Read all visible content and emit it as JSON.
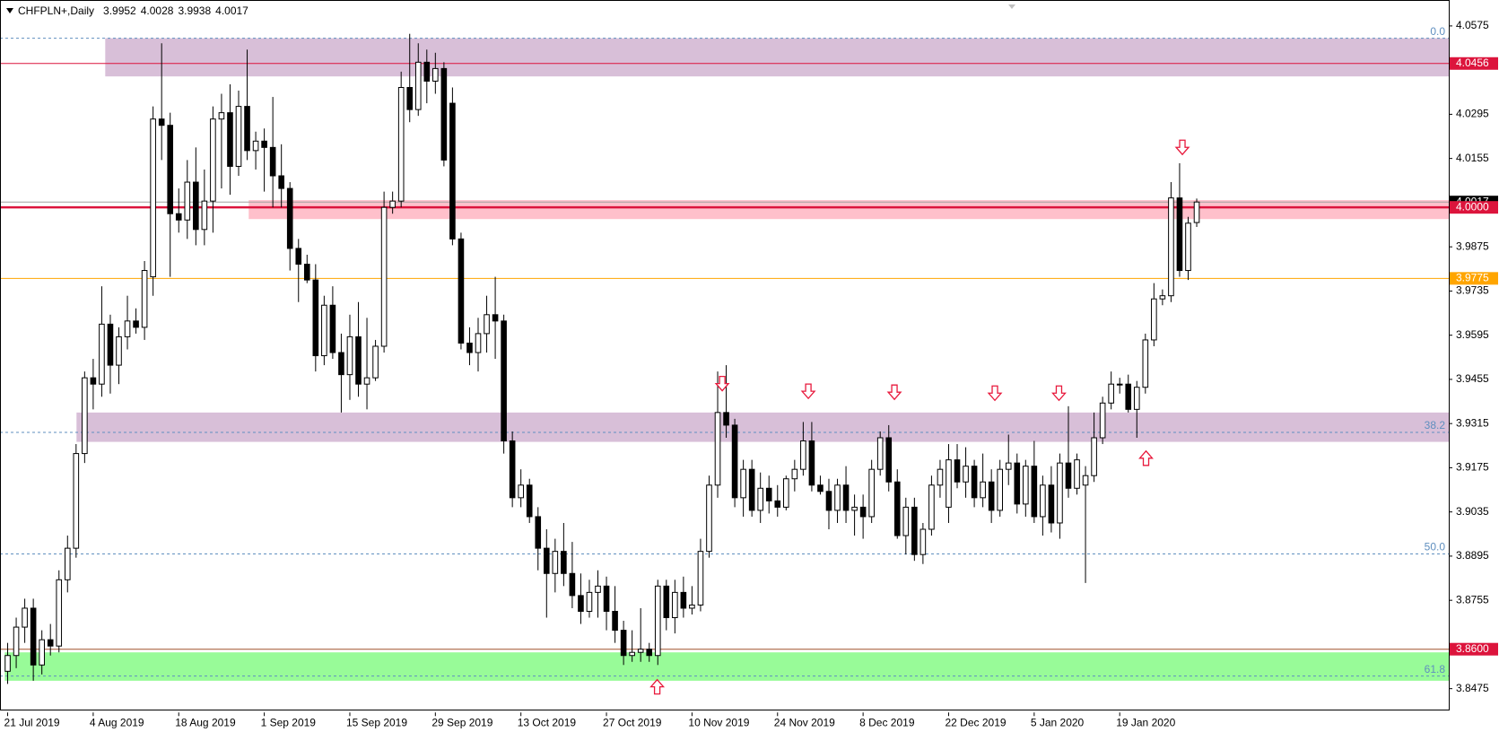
{
  "chart_data": {
    "type": "candlestick",
    "symbol": "CHFPLN+,Daily",
    "ylim": [
      3.8408,
      4.0642
    ],
    "yticks": [
      4.0575,
      4.0295,
      4.0155,
      3.9875,
      3.9735,
      3.9595,
      3.9455,
      3.9315,
      3.9175,
      3.9035,
      3.8895,
      3.8755,
      3.8475
    ],
    "up_color": "#ffffff",
    "down_color": "#000000",
    "categories": [
      "21 Jul 2019",
      null,
      null,
      null,
      null,
      null,
      null,
      null,
      null,
      null,
      "4 Aug 2019",
      null,
      null,
      null,
      null,
      null,
      null,
      null,
      null,
      null,
      "18 Aug 2019",
      null,
      null,
      null,
      null,
      null,
      null,
      null,
      null,
      null,
      "1 Sep 2019",
      null,
      null,
      null,
      null,
      null,
      null,
      null,
      null,
      null,
      "15 Sep 2019",
      null,
      null,
      null,
      null,
      null,
      null,
      null,
      null,
      null,
      "29 Sep 2019",
      null,
      null,
      null,
      null,
      null,
      null,
      null,
      null,
      null,
      "13 Oct 2019",
      null,
      null,
      null,
      null,
      null,
      null,
      null,
      null,
      null,
      "27 Oct 2019",
      null,
      null,
      null,
      null,
      null,
      null,
      null,
      null,
      null,
      "10 Nov 2019",
      null,
      null,
      null,
      null,
      null,
      null,
      null,
      null,
      null,
      "24 Nov 2019",
      null,
      null,
      null,
      null,
      null,
      null,
      null,
      null,
      null,
      "8 Dec 2019",
      null,
      null,
      null,
      null,
      null,
      null,
      null,
      null,
      null,
      "22 Dec 2019",
      null,
      null,
      null,
      null,
      null,
      null,
      null,
      null,
      null,
      "5 Jan 2020",
      null,
      null,
      null,
      null,
      null,
      null,
      null,
      null,
      null,
      "19 Jan 2020",
      null,
      null,
      null,
      null,
      null,
      null,
      null,
      null,
      null
    ],
    "ohlc": [
      [
        3.853,
        3.862,
        3.849,
        3.858
      ],
      [
        3.858,
        3.87,
        3.854,
        3.867
      ],
      [
        3.867,
        3.876,
        3.862,
        3.873
      ],
      [
        3.873,
        3.876,
        3.85,
        3.855
      ],
      [
        3.855,
        3.866,
        3.852,
        3.863
      ],
      [
        3.863,
        3.868,
        3.858,
        3.861
      ],
      [
        3.861,
        3.885,
        3.859,
        3.882
      ],
      [
        3.882,
        3.896,
        3.878,
        3.892
      ],
      [
        3.892,
        3.925,
        3.889,
        3.922
      ],
      [
        3.922,
        3.948,
        3.919,
        3.946
      ],
      [
        3.946,
        3.952,
        3.936,
        3.944
      ],
      [
        3.944,
        3.975,
        3.94,
        3.963
      ],
      [
        3.963,
        3.966,
        3.941,
        3.95
      ],
      [
        3.95,
        3.962,
        3.944,
        3.959
      ],
      [
        3.959,
        3.972,
        3.955,
        3.964
      ],
      [
        3.964,
        3.968,
        3.96,
        3.962
      ],
      [
        3.962,
        3.983,
        3.958,
        3.98
      ],
      [
        3.978,
        4.032,
        3.972,
        4.028
      ],
      [
        4.028,
        4.052,
        4.015,
        4.026
      ],
      [
        4.026,
        4.03,
        3.978,
        3.998
      ],
      [
        3.998,
        4.006,
        3.992,
        3.996
      ],
      [
        3.996,
        4.015,
        3.99,
        4.008
      ],
      [
        4.008,
        4.019,
        3.988,
        3.993
      ],
      [
        3.993,
        4.012,
        3.988,
        4.002
      ],
      [
        4.002,
        4.032,
        3.992,
        4.028
      ],
      [
        4.028,
        4.036,
        4.006,
        4.03
      ],
      [
        4.03,
        4.039,
        4.004,
        4.013
      ],
      [
        4.013,
        4.037,
        4.01,
        4.032
      ],
      [
        4.032,
        4.05,
        4.015,
        4.018
      ],
      [
        4.018,
        4.024,
        4.012,
        4.021
      ],
      [
        4.021,
        4.025,
        4.005,
        4.019
      ],
      [
        4.019,
        4.035,
        4.0,
        4.01
      ],
      [
        4.01,
        4.02,
        4.0,
        4.006
      ],
      [
        4.006,
        4.008,
        3.98,
        3.987
      ],
      [
        3.987,
        3.99,
        3.97,
        3.982
      ],
      [
        3.982,
        3.985,
        3.976,
        3.977
      ],
      [
        3.977,
        3.982,
        3.948,
        3.953
      ],
      [
        3.953,
        3.972,
        3.95,
        3.969
      ],
      [
        3.969,
        3.975,
        3.952,
        3.954
      ],
      [
        3.954,
        3.96,
        3.935,
        3.947
      ],
      [
        3.947,
        3.966,
        3.939,
        3.959
      ],
      [
        3.959,
        3.97,
        3.94,
        3.944
      ],
      [
        3.944,
        3.965,
        3.936,
        3.946
      ],
      [
        3.946,
        3.958,
        3.945,
        3.956
      ],
      [
        3.956,
        4.005,
        3.954,
        4.0
      ],
      [
        4.0,
        4.005,
        3.998,
        4.002
      ],
      [
        4.002,
        4.043,
        4.0,
        4.038
      ],
      [
        4.038,
        4.055,
        4.027,
        4.031
      ],
      [
        4.031,
        4.052,
        4.029,
        4.046
      ],
      [
        4.046,
        4.05,
        4.033,
        4.04
      ],
      [
        4.04,
        4.049,
        4.036,
        4.044
      ],
      [
        4.044,
        4.046,
        4.013,
        4.015
      ],
      [
        4.033,
        4.038,
        3.988,
        3.99
      ],
      [
        3.99,
        3.992,
        3.955,
        3.957
      ],
      [
        3.957,
        3.962,
        3.95,
        3.954
      ],
      [
        3.954,
        3.965,
        3.948,
        3.96
      ],
      [
        3.96,
        3.972,
        3.954,
        3.966
      ],
      [
        3.966,
        3.978,
        3.952,
        3.964
      ],
      [
        3.964,
        3.966,
        3.922,
        3.926
      ],
      [
        3.926,
        3.929,
        3.905,
        3.908
      ],
      [
        3.908,
        3.917,
        3.905,
        3.912
      ],
      [
        3.912,
        3.914,
        3.9,
        3.902
      ],
      [
        3.902,
        3.905,
        3.885,
        3.892
      ],
      [
        3.892,
        3.898,
        3.87,
        3.884
      ],
      [
        3.884,
        3.895,
        3.878,
        3.891
      ],
      [
        3.891,
        3.9,
        3.88,
        3.884
      ],
      [
        3.884,
        3.894,
        3.873,
        3.877
      ],
      [
        3.877,
        3.884,
        3.868,
        3.872
      ],
      [
        3.872,
        3.882,
        3.87,
        3.878
      ],
      [
        3.878,
        3.885,
        3.87,
        3.88
      ],
      [
        3.88,
        3.883,
        3.866,
        3.872
      ],
      [
        3.872,
        3.88,
        3.862,
        3.866
      ],
      [
        3.866,
        3.869,
        3.855,
        3.858
      ],
      [
        3.858,
        3.866,
        3.856,
        3.859
      ],
      [
        3.859,
        3.873,
        3.856,
        3.86
      ],
      [
        3.86,
        3.862,
        3.856,
        3.858
      ],
      [
        3.858,
        3.882,
        3.855,
        3.88
      ],
      [
        3.88,
        3.882,
        3.866,
        3.87
      ],
      [
        3.87,
        3.882,
        3.865,
        3.878
      ],
      [
        3.878,
        3.883,
        3.87,
        3.873
      ],
      [
        3.873,
        3.88,
        3.871,
        3.874
      ],
      [
        3.874,
        3.895,
        3.872,
        3.891
      ],
      [
        3.891,
        3.915,
        3.889,
        3.912
      ],
      [
        3.912,
        3.948,
        3.908,
        3.935
      ],
      [
        3.935,
        3.95,
        3.927,
        3.931
      ],
      [
        3.931,
        3.933,
        3.905,
        3.908
      ],
      [
        3.908,
        3.92,
        3.902,
        3.917
      ],
      [
        3.917,
        3.92,
        3.902,
        3.904
      ],
      [
        3.904,
        3.916,
        3.9,
        3.911
      ],
      [
        3.911,
        3.915,
        3.903,
        3.907
      ],
      [
        3.907,
        3.912,
        3.902,
        3.905
      ],
      [
        3.905,
        3.915,
        3.904,
        3.914
      ],
      [
        3.914,
        3.92,
        3.91,
        3.917
      ],
      [
        3.917,
        3.932,
        3.915,
        3.926
      ],
      [
        3.926,
        3.932,
        3.91,
        3.912
      ],
      [
        3.912,
        3.915,
        3.909,
        3.91
      ],
      [
        3.91,
        3.914,
        3.898,
        3.904
      ],
      [
        3.904,
        3.914,
        3.9,
        3.912
      ],
      [
        3.912,
        3.918,
        3.9,
        3.904
      ],
      [
        3.904,
        3.909,
        3.896,
        3.905
      ],
      [
        3.905,
        3.909,
        3.895,
        3.902
      ],
      [
        3.902,
        3.92,
        3.9,
        3.917
      ],
      [
        3.917,
        3.929,
        3.915,
        3.927
      ],
      [
        3.927,
        3.931,
        3.91,
        3.913
      ],
      [
        3.913,
        3.917,
        3.895,
        3.896
      ],
      [
        3.896,
        3.908,
        3.89,
        3.905
      ],
      [
        3.905,
        3.908,
        3.888,
        3.89
      ],
      [
        3.89,
        3.9,
        3.887,
        3.898
      ],
      [
        3.898,
        3.915,
        3.896,
        3.912
      ],
      [
        3.912,
        3.92,
        3.908,
        3.917
      ],
      [
        3.905,
        3.925,
        3.9,
        3.92
      ],
      [
        3.92,
        3.925,
        3.911,
        3.913
      ],
      [
        3.913,
        3.924,
        3.908,
        3.918
      ],
      [
        3.918,
        3.92,
        3.905,
        3.908
      ],
      [
        3.908,
        3.922,
        3.905,
        3.913
      ],
      [
        3.913,
        3.917,
        3.9,
        3.904
      ],
      [
        3.904,
        3.92,
        3.902,
        3.917
      ],
      [
        3.917,
        3.928,
        3.912,
        3.919
      ],
      [
        3.919,
        3.922,
        3.903,
        3.906
      ],
      [
        3.906,
        3.92,
        3.902,
        3.918
      ],
      [
        3.918,
        3.926,
        3.9,
        3.902
      ],
      [
        3.902,
        3.915,
        3.896,
        3.912
      ],
      [
        3.912,
        3.918,
        3.897,
        3.9
      ],
      [
        3.9,
        3.922,
        3.895,
        3.919
      ],
      [
        3.919,
        3.937,
        3.908,
        3.911
      ],
      [
        3.911,
        3.922,
        3.909,
        3.92
      ],
      [
        3.912,
        3.918,
        3.881,
        3.915
      ],
      [
        3.915,
        3.935,
        3.913,
        3.927
      ],
      [
        3.927,
        3.94,
        3.925,
        3.938
      ],
      [
        3.938,
        3.948,
        3.936,
        3.944
      ],
      [
        3.944,
        3.946,
        3.941,
        3.944
      ],
      [
        3.944,
        3.947,
        3.935,
        3.936
      ],
      [
        3.936,
        3.945,
        3.927,
        3.943
      ],
      [
        3.943,
        3.96,
        3.941,
        3.958
      ],
      [
        3.958,
        3.976,
        3.956,
        3.971
      ],
      [
        3.971,
        3.974,
        3.969,
        3.972
      ],
      [
        3.972,
        4.008,
        3.97,
        4.003
      ],
      [
        4.003,
        4.014,
        3.978,
        3.98
      ],
      [
        3.98,
        3.997,
        3.977,
        3.995
      ],
      [
        3.9952,
        4.0028,
        3.9938,
        4.0017
      ]
    ],
    "zones": [
      {
        "high": 4.0536,
        "low": 4.0415,
        "color": "#d8bfd8"
      },
      {
        "high": 4.0023,
        "low": 3.9963,
        "color": "#ffc0cb"
      },
      {
        "high": 3.935,
        "low": 3.9257,
        "color": "#d8bfd8"
      },
      {
        "high": 3.859,
        "low": 3.85,
        "color": "#98fb98"
      }
    ],
    "levels": [
      {
        "price": 4.0456,
        "color": "#dc143c",
        "width": 1
      },
      {
        "price": {
          "value": 4,
          "label": "4.0000"
        },
        "color": "#dc143c",
        "width": 2.5
      },
      {
        "price": 3.9775,
        "color": "#ffa500",
        "width": 1
      },
      {
        "price": {
          "value": 3.86,
          "label": "3.8600"
        },
        "color": "#dc143c",
        "line_color": "#a0522d",
        "width": 1
      }
    ],
    "fibonacci": [
      {
        "level": "0.0",
        "price": 4.0536
      },
      {
        "level": "38.2",
        "price": 3.9287
      },
      {
        "level": "50.0",
        "price": 3.8902
      },
      {
        "level": "61.8",
        "price": 3.8515
      }
    ],
    "fib_color": "#5f8fbf"
  }
}
